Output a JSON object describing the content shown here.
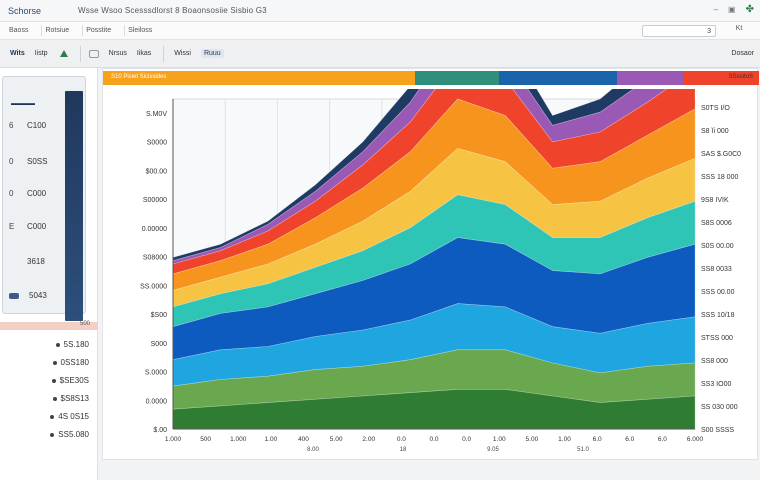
{
  "window": {
    "app_name": "Schorse",
    "title": "Wsse Wsoo Scesssdlorst 8 Boaonsosiie Sisbio G3",
    "ctrl1": "–",
    "ctrl2": "▣"
  },
  "toolbar": {
    "items": [
      "Baoss",
      "Rotsiue",
      "Posstite",
      "Sleiloss"
    ],
    "search_value": "3",
    "search_btn": "Kt"
  },
  "ribbon": {
    "items": [
      "Wits",
      "Iistp",
      "Nrsus",
      "Iikas",
      "Wissi",
      "Ruuu"
    ],
    "right": "Dosaor"
  },
  "colors": {
    "navy": "#1f3b63",
    "purple": "#9b59b6",
    "red": "#f0432b",
    "orange": "#f7941d",
    "yellow": "#f6c343",
    "teal": "#2ec4b6",
    "blue": "#0d5bbf",
    "sky": "#1fa5e0",
    "green": "#6aa84f",
    "darkgreen": "#2e7d32"
  },
  "sidebar": {
    "header": "▬▬▬▬",
    "items": [
      {
        "idx": "6",
        "label": "C100"
      },
      {
        "idx": "0",
        "label": "S0SS"
      },
      {
        "idx": "0",
        "label": "C000"
      },
      {
        "idx": "E",
        "label": "C000"
      },
      {
        "idx": "",
        "label": "3618"
      },
      {
        "idx": "",
        "label": "5043"
      }
    ],
    "divider_value": "500",
    "rows": [
      "5S.180",
      "0SS180",
      "$SE30S",
      "$S8S13",
      "4S 0S15",
      "SS5.080"
    ]
  },
  "strip": {
    "label": "S10 Pisiet Sicissides",
    "right": "SSssitoS"
  },
  "chart_data": {
    "type": "area",
    "stacked": true,
    "x": [
      0,
      1,
      2,
      3,
      4,
      5,
      6,
      7,
      8,
      9,
      10,
      11
    ],
    "y_tick_labels_left": [
      "S.M0V",
      "S0000",
      "$00.00",
      "S00000",
      "0.00000",
      "S08000",
      "SS.0000",
      "$S00",
      "S000",
      "S.0000",
      "0.0000",
      "$.00"
    ],
    "y_tick_labels_right": [
      "S0TS I/O",
      "S8 ĭi 000",
      "SAS $.G0C0",
      "SSS 18 000",
      "9S8 IVIK",
      "S8S 0006",
      "S0S 00.00",
      "SS8 0033",
      "SSS 00.00",
      "SSS 10/18",
      "STSS 000",
      "SS8 000",
      "SS3 IO00",
      "SS 030 000",
      "S00 SSSS"
    ],
    "x_tick_labels": [
      "1.000",
      "500",
      "1.000",
      "1.00",
      "400",
      "5.00",
      "2.00",
      "0.0",
      "0.0",
      "0.0",
      "1.00",
      "5.00",
      "1.00",
      "6.0",
      "6.0",
      "6.0",
      "6.000"
    ],
    "x_sub_labels": [
      "8.00",
      "18",
      "9.05",
      "51.0"
    ],
    "series": [
      {
        "color": "#2e7d32",
        "values": [
          6,
          7,
          8,
          9,
          10,
          11,
          12,
          12,
          10,
          8,
          9,
          10
        ]
      },
      {
        "color": "#6aa84f",
        "values": [
          7,
          8,
          8,
          9,
          9,
          10,
          12,
          12,
          10,
          9,
          10,
          10
        ]
      },
      {
        "color": "#1fa5e0",
        "values": [
          8,
          9,
          9,
          10,
          11,
          12,
          14,
          13,
          11,
          12,
          13,
          14
        ]
      },
      {
        "color": "#0d5bbf",
        "values": [
          10,
          11,
          12,
          13,
          15,
          17,
          20,
          19,
          17,
          18,
          20,
          22
        ]
      },
      {
        "color": "#2ec4b6",
        "values": [
          6,
          6,
          7,
          8,
          9,
          11,
          13,
          12,
          10,
          11,
          12,
          13
        ]
      },
      {
        "color": "#f6c343",
        "values": [
          5,
          5,
          6,
          7,
          9,
          11,
          14,
          13,
          10,
          11,
          12,
          13
        ]
      },
      {
        "color": "#f7941d",
        "values": [
          5,
          5,
          6,
          8,
          10,
          12,
          15,
          14,
          11,
          12,
          13,
          15
        ]
      },
      {
        "color": "#f0432b",
        "values": [
          3,
          3,
          4,
          5,
          7,
          9,
          12,
          11,
          8,
          9,
          10,
          12
        ]
      },
      {
        "color": "#9b59b6",
        "values": [
          1,
          1,
          2,
          3,
          4,
          6,
          8,
          7,
          5,
          6,
          7,
          8
        ]
      },
      {
        "color": "#1f3b63",
        "values": [
          1,
          1,
          1,
          2,
          3,
          5,
          8,
          6,
          3,
          4,
          6,
          9
        ]
      }
    ],
    "ylim": [
      0,
      100
    ],
    "grid": true
  }
}
